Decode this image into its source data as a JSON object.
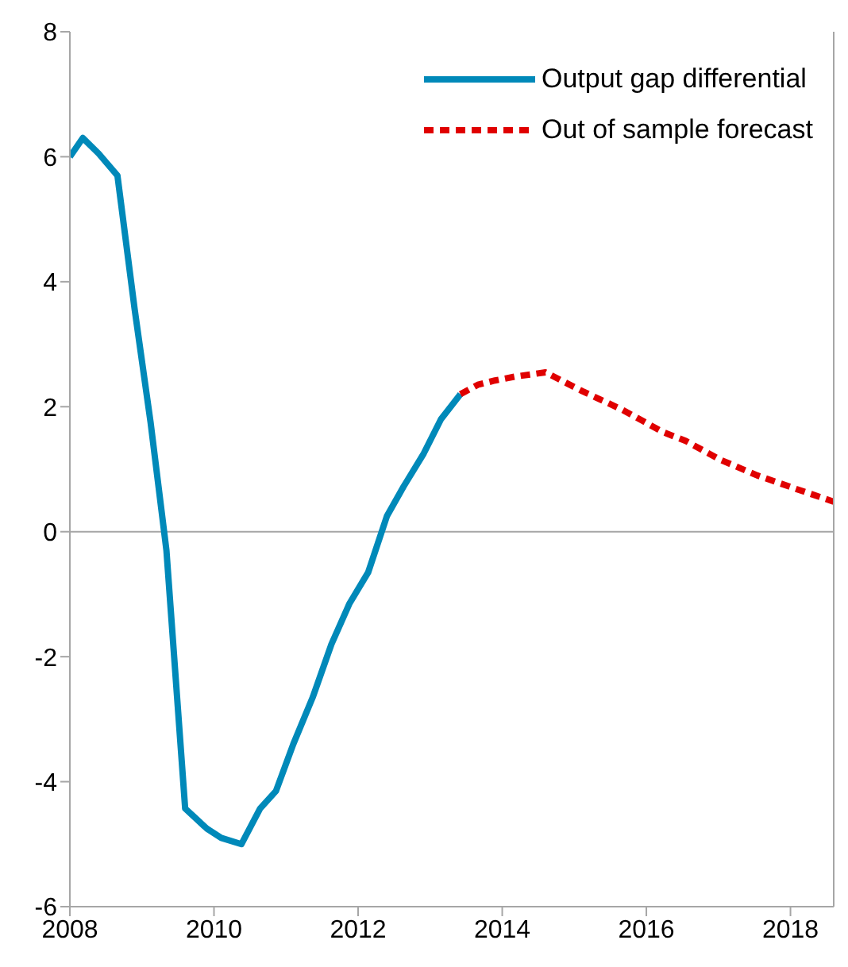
{
  "chart_data": {
    "type": "line",
    "xlim": [
      2008,
      2018.6
    ],
    "xticks": [
      2008,
      2010,
      2012,
      2014,
      2016,
      2018
    ],
    "ylim": [
      -6,
      8
    ],
    "yticks": [
      -6,
      -4,
      -2,
      0,
      2,
      4,
      6,
      8
    ],
    "grid": false,
    "legend": "top right",
    "marker": "none",
    "ref_lines": [
      {
        "axis": "y",
        "value": 0,
        "color": "#a6a6a6"
      }
    ],
    "series": [
      {
        "name": "Output gap differential",
        "color": "#0089b9",
        "line_style": "solid",
        "x": [
          2008,
          2008.18,
          2008.4,
          2008.66,
          2008.9,
          2009.12,
          2009.34,
          2009.6,
          2009.9,
          2010.1,
          2010.38,
          2010.64,
          2010.86,
          2011.1,
          2011.37,
          2011.63,
          2011.88,
          2012.14,
          2012.4,
          2012.63,
          2012.91,
          2013.15,
          2013.42
        ],
        "values": [
          6.0,
          6.3,
          6.05,
          5.7,
          3.55,
          1.75,
          -0.3,
          -4.43,
          -4.75,
          -4.9,
          -5.0,
          -4.43,
          -4.15,
          -3.4,
          -2.65,
          -1.8,
          -1.15,
          -0.65,
          0.25,
          0.72,
          1.25,
          1.8,
          2.2
        ]
      },
      {
        "name": "Out of sample forecast",
        "color": "#e00000",
        "line_style": "dashed",
        "x": [
          2013.42,
          2013.66,
          2013.9,
          2014.17,
          2014.6,
          2015.11,
          2015.67,
          2016.22,
          2016.55,
          2017.03,
          2017.54,
          2018.09,
          2018.6
        ],
        "values": [
          2.2,
          2.35,
          2.42,
          2.48,
          2.55,
          2.25,
          1.95,
          1.6,
          1.45,
          1.15,
          0.9,
          0.68,
          0.48
        ]
      }
    ]
  }
}
